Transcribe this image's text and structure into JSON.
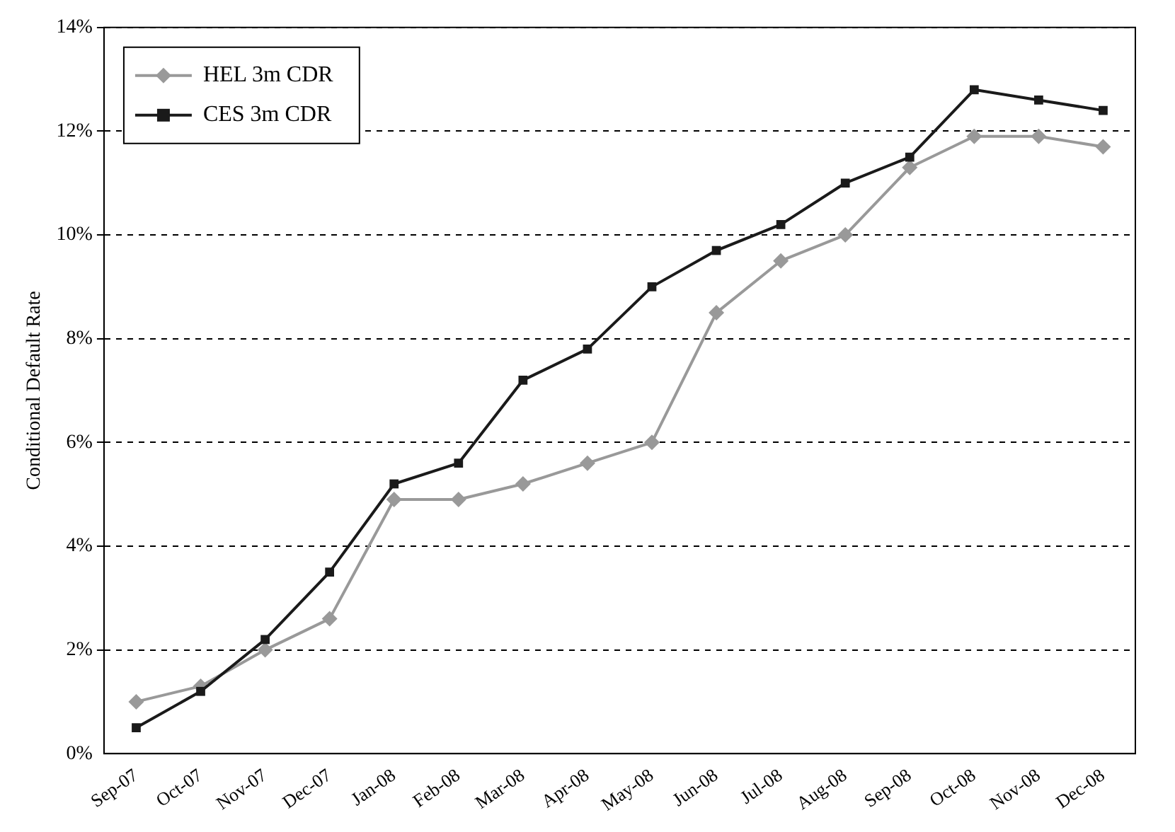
{
  "chart_data": {
    "type": "line",
    "ylabel": "Conditional Default Rate",
    "categories": [
      "Sep-07",
      "Oct-07",
      "Nov-07",
      "Dec-07",
      "Jan-08",
      "Feb-08",
      "Mar-08",
      "Apr-08",
      "May-08",
      "Jun-08",
      "Jul-08",
      "Aug-08",
      "Sep-08",
      "Oct-08",
      "Nov-08",
      "Dec-08"
    ],
    "series": [
      {
        "name": "HEL 3m CDR",
        "color": "#999999",
        "marker": "diamond",
        "values": [
          1.0,
          1.3,
          2.0,
          2.6,
          4.9,
          4.9,
          5.2,
          5.6,
          6.0,
          8.5,
          9.5,
          10.0,
          11.3,
          11.9,
          11.9,
          11.7
        ]
      },
      {
        "name": "CES 3m CDR",
        "color": "#1a1a1a",
        "marker": "square",
        "values": [
          0.5,
          1.2,
          2.2,
          3.5,
          5.2,
          5.6,
          7.2,
          7.8,
          9.0,
          9.7,
          10.2,
          11.0,
          11.5,
          12.8,
          12.6,
          12.4
        ]
      }
    ],
    "ylim": [
      0,
      14
    ],
    "yticks": [
      {
        "value": 0,
        "label": "0%"
      },
      {
        "value": 2,
        "label": "2%"
      },
      {
        "value": 4,
        "label": "4%"
      },
      {
        "value": 6,
        "label": "6%"
      },
      {
        "value": 8,
        "label": "8%"
      },
      {
        "value": 10,
        "label": "10%"
      },
      {
        "value": 12,
        "label": "12%"
      },
      {
        "value": 14,
        "label": "14%"
      }
    ],
    "grid": "y",
    "line_style": "solid",
    "legend": "top left"
  }
}
